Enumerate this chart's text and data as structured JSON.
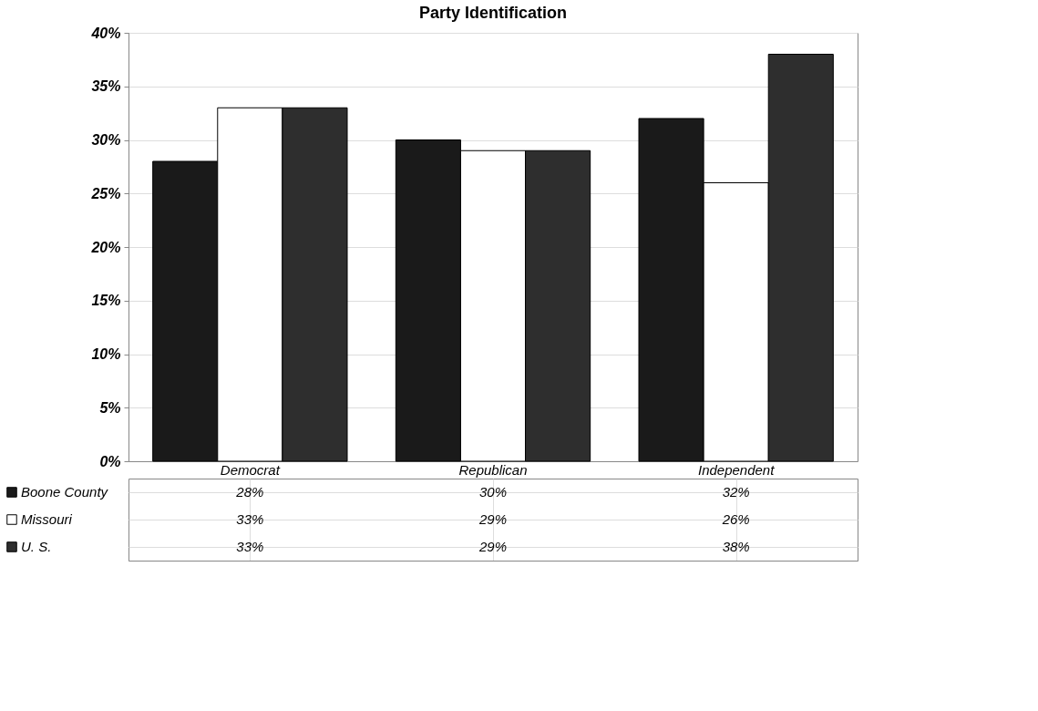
{
  "chart_data": {
    "type": "bar",
    "title": "Party Identification",
    "categories": [
      "Democrat",
      "Republican",
      "Independent"
    ],
    "series": [
      {
        "name": "Boone County",
        "color": "#1a1a1a",
        "values": [
          28,
          30,
          32
        ],
        "value_labels": [
          "28%",
          "30%",
          "32%"
        ]
      },
      {
        "name": "Missouri",
        "color": "#ffffff",
        "values": [
          33,
          29,
          26
        ],
        "value_labels": [
          "33%",
          "29%",
          "26%"
        ]
      },
      {
        "name": "U. S.",
        "color": "#2e2e2e",
        "values": [
          33,
          29,
          38
        ],
        "value_labels": [
          "33%",
          "29%",
          "38%"
        ]
      }
    ],
    "ylim": [
      0,
      40
    ],
    "yticks": [
      {
        "value": 0,
        "label": "0%"
      },
      {
        "value": 5,
        "label": "5%"
      },
      {
        "value": 10,
        "label": "10%"
      },
      {
        "value": 15,
        "label": "15%"
      },
      {
        "value": 20,
        "label": "20%"
      },
      {
        "value": 25,
        "label": "25%"
      },
      {
        "value": 30,
        "label": "30%"
      },
      {
        "value": 35,
        "label": "35%"
      },
      {
        "value": 40,
        "label": "40%"
      }
    ],
    "grid": "y",
    "legend": "bottom"
  }
}
